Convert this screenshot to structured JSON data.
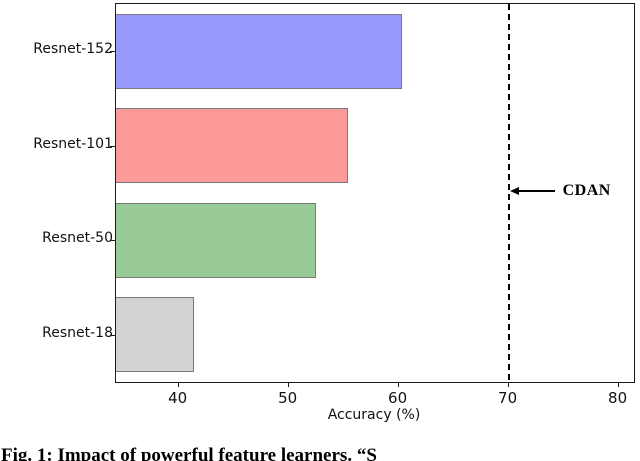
{
  "chart_data": {
    "type": "bar",
    "orientation": "horizontal",
    "title": "",
    "xlabel": "Accuracy (%)",
    "ylabel": "",
    "categories": [
      "Resnet-152",
      "Resnet-101",
      "Resnet-50",
      "Resnet-18"
    ],
    "values": [
      60.3,
      55.4,
      52.5,
      41.4
    ],
    "bar_colors": [
      "#9999fb",
      "#fc9a9a",
      "#99cb98",
      "#d3d3d3"
    ],
    "bar_edge_color": "#7a7a7a",
    "x_ticks": [
      40,
      50,
      60,
      70,
      80
    ],
    "xlim": [
      34.3,
      81.4
    ],
    "grid": false,
    "legend": "none",
    "reference_line": {
      "value": 70,
      "style": "dashed",
      "color": "#000000",
      "label": "CDAN"
    }
  },
  "caption": {
    "text": "Fig. 1: Impact of powerful feature learners. “S",
    "note": "caption is cut off at the bottom edge of the image"
  }
}
